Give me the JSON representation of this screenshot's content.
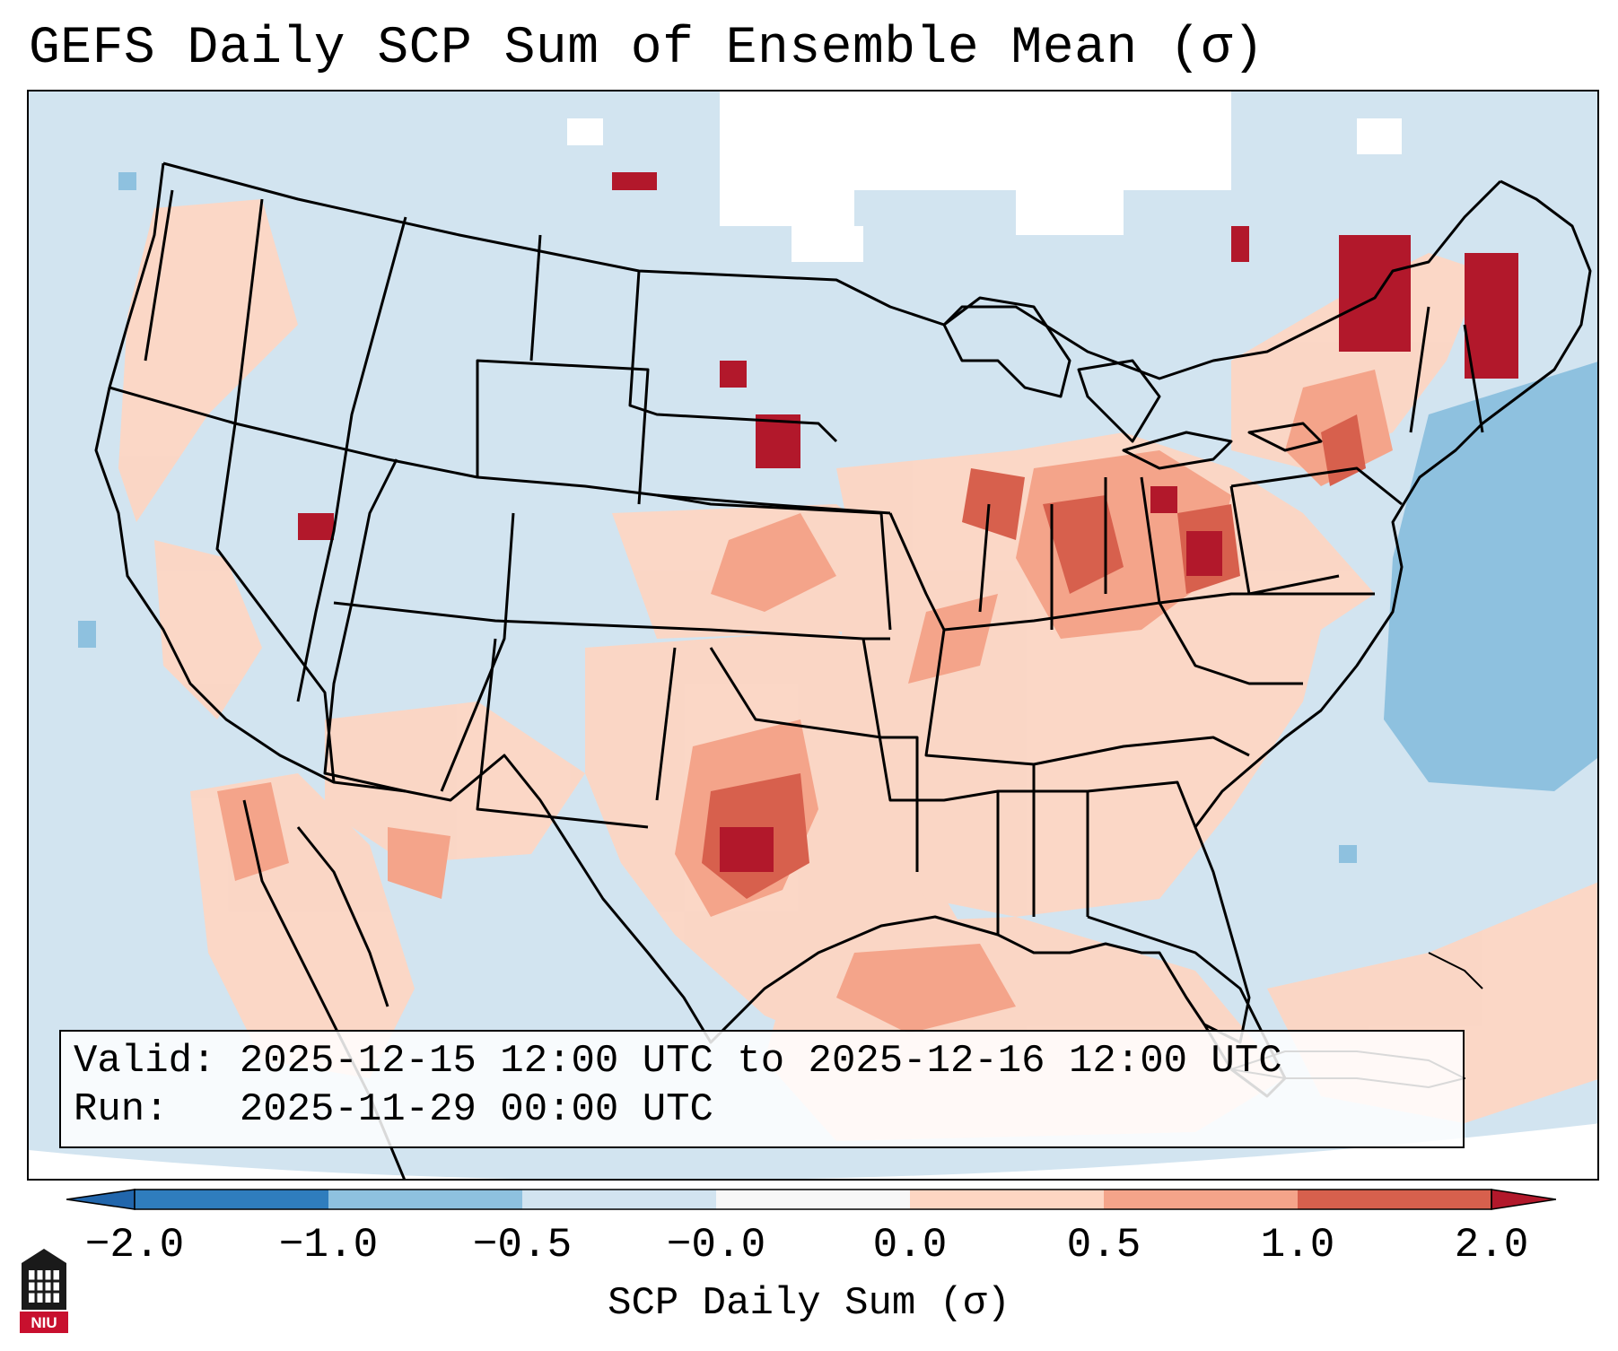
{
  "title": "GEFS Daily SCP Sum of Ensemble Mean (σ)",
  "valid_label": "Valid:",
  "valid_text": "2025-12-15 12:00 UTC to 2025-12-16 12:00 UTC",
  "run_label": "Run:",
  "run_text": "2025-11-29 00:00 UTC",
  "colorbar": {
    "label": "SCP Daily Sum (σ)",
    "ticks": [
      "−2.0",
      "−1.0",
      "−0.5",
      "−0.0",
      "0.0",
      "0.5",
      "1.0",
      "2.0"
    ],
    "colors": [
      "#2f7dbd",
      "#8ec1df",
      "#d2e4f0",
      "#f7f7f7",
      "#fdd6c3",
      "#f4a48a",
      "#d7604d",
      "#b2182b"
    ],
    "extend_colors": {
      "low": "#2166ac",
      "high": "#b2182b"
    }
  },
  "logo_text": "NIU",
  "map": {
    "region": "Contiguous United States",
    "field": "SCP daily sum anomaly of GEFS ensemble mean",
    "highlight_areas": [
      {
        "name": "Texas/Oklahoma",
        "level": "1.0"
      },
      {
        "name": "Ohio Valley",
        "level": "1.0"
      },
      {
        "name": "Nebraska/Kansas",
        "level": "1.0"
      },
      {
        "name": "New York/Quebec",
        "level": "1.0"
      },
      {
        "name": "Gulf of Mexico",
        "level": "0.5"
      }
    ]
  }
}
